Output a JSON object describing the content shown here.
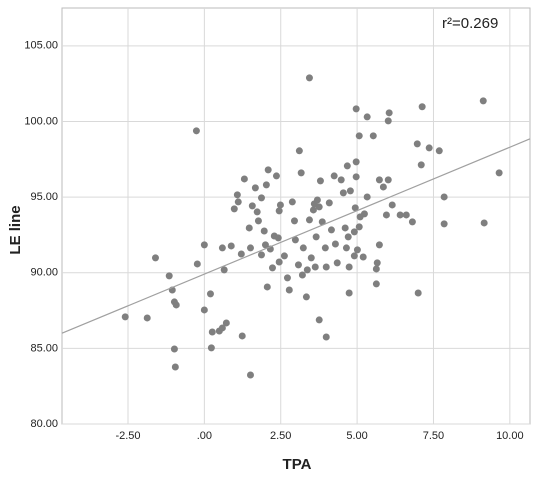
{
  "chart_data": {
    "type": "scatter",
    "x_label": "TPA",
    "y_label": "LE line",
    "annotation": "r²=0.269",
    "color": "#7f7f7f",
    "grid": true,
    "xlim": [
      -4.66,
      10.66
    ],
    "ylim": [
      80,
      107.5
    ],
    "xticks": [
      {
        "value": -2.5,
        "label": "-2.50"
      },
      {
        "value": 0,
        "label": ".00"
      },
      {
        "value": 2.5,
        "label": "2.50"
      },
      {
        "value": 5,
        "label": "5.00"
      },
      {
        "value": 7.5,
        "label": "7.50"
      },
      {
        "value": 10,
        "label": "10.00"
      }
    ],
    "yticks": [
      {
        "value": 80,
        "label": "80.00"
      },
      {
        "value": 85,
        "label": "85.00"
      },
      {
        "value": 90,
        "label": "90.00"
      },
      {
        "value": 95,
        "label": "95.00"
      },
      {
        "value": 100,
        "label": "100.00"
      },
      {
        "value": 105,
        "label": "105.00"
      }
    ],
    "fit_line": {
      "x": [
        -4.66,
        10.66
      ],
      "y": [
        86.0,
        98.85
      ],
      "color": "#a0a0a0"
    },
    "x": [
      -2.59,
      -1.87,
      -1.6,
      -1.15,
      -1.05,
      -0.98,
      -0.92,
      -0.98,
      -0.95,
      -0.26,
      -0.23,
      0,
      0,
      0.2,
      0.23,
      0.26,
      0.49,
      0.59,
      0.65,
      0.72,
      0.59,
      0.88,
      0.98,
      1.08,
      1.11,
      1.24,
      1.31,
      1.47,
      1.51,
      1.57,
      1.67,
      1.73,
      1.77,
      1.87,
      1.96,
      2,
      2.03,
      2.09,
      2.16,
      2.06,
      2.23,
      2.29,
      2.36,
      2.42,
      2.45,
      2.49,
      2.45,
      2.62,
      2.72,
      2.78,
      2.88,
      2.95,
      2.98,
      3.08,
      3.11,
      3.17,
      3.21,
      3.24,
      3.34,
      3.37,
      3.44,
      3.44,
      3.5,
      3.57,
      3.6,
      3.63,
      3.66,
      3.7,
      3.76,
      3.8,
      3.86,
      3.76,
      3.96,
      3.99,
      3.99,
      4.09,
      4.16,
      4.25,
      4.29,
      4.35,
      4.48,
      4.55,
      4.61,
      4.65,
      4.68,
      4.71,
      4.74,
      4.78,
      4.74,
      4.91,
      4.91,
      4.94,
      4.97,
      4.97,
      5.01,
      5.07,
      5.1,
      5.2,
      5.24,
      4.97,
      5.07,
      5.33,
      5.33,
      5.53,
      5.63,
      5.63,
      5.66,
      5.73,
      5.73,
      5.86,
      5.96,
      6.02,
      6.02,
      6.05,
      6.15,
      6.41,
      6.61,
      6.81,
      7,
      6.97,
      7.13,
      7.1,
      7.36,
      7.69,
      7.85,
      7.85,
      9.16,
      9.13,
      9.65,
      1.51,
      1.87,
      1.21
    ],
    "values": [
      87.08,
      87.01,
      90.98,
      89.79,
      88.86,
      88.07,
      87.87,
      84.96,
      83.77,
      99.38,
      90.58,
      91.84,
      87.54,
      88.6,
      85.03,
      86.08,
      86.15,
      91.64,
      90.19,
      86.68,
      86.35,
      91.77,
      94.22,
      95.15,
      94.68,
      85.82,
      96.2,
      92.96,
      91.64,
      94.42,
      95.61,
      94.02,
      93.43,
      94.95,
      92.76,
      91.84,
      95.81,
      96.8,
      91.57,
      89.06,
      90.32,
      92.43,
      96.4,
      92.3,
      94.09,
      94.48,
      90.71,
      91.11,
      89.66,
      88.86,
      94.68,
      93.43,
      92.17,
      90.52,
      98.06,
      96.6,
      89.85,
      91.64,
      88.4,
      90.19,
      102.88,
      93.49,
      90.98,
      94.15,
      94.55,
      90.38,
      92.37,
      94.81,
      94.35,
      96.07,
      93.36,
      86.88,
      91.64,
      85.75,
      90.38,
      94.62,
      92.83,
      96.4,
      91.9,
      90.65,
      96.14,
      95.28,
      92.96,
      91.64,
      97.06,
      92.37,
      90.38,
      95.41,
      88.66,
      91.11,
      92.7,
      94.29,
      97.33,
      96.34,
      91.51,
      93.03,
      93.69,
      91.04,
      93.89,
      100.83,
      99.05,
      95.01,
      100.3,
      99.05,
      90.25,
      89.26,
      90.65,
      91.84,
      96.14,
      95.67,
      93.82,
      96.14,
      100.04,
      100.57,
      94.48,
      93.82,
      93.82,
      93.36,
      88.66,
      98.52,
      100.97,
      97.13,
      98.25,
      98.06,
      95.01,
      93.23,
      93.29,
      101.36,
      96.6,
      83.24,
      91.18,
      91.24
    ]
  }
}
